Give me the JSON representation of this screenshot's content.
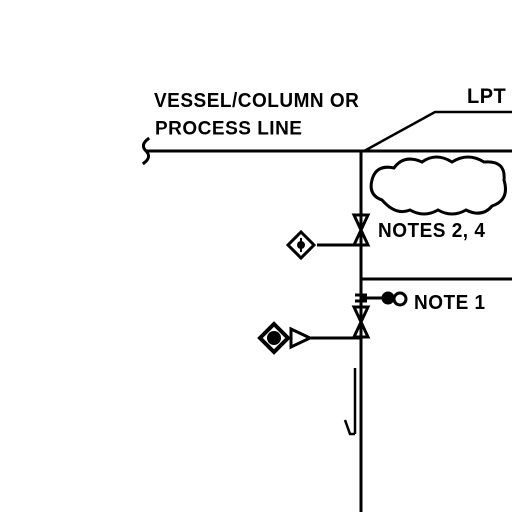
{
  "diagram": {
    "labels": {
      "vessel_line_1": "VESSEL/COLUMN OR",
      "vessel_line_2": "PROCESS LINE",
      "lpt": "LPT",
      "notes_2_4": "NOTES 2, 4",
      "note_1": "NOTE 1"
    },
    "colors": {
      "line": "#000000",
      "background": "#ffffff"
    },
    "symbols": [
      "break-symbol",
      "isolation-valve",
      "diamond-connector",
      "cloud-callout",
      "check-valve",
      "flow-arrow"
    ]
  }
}
